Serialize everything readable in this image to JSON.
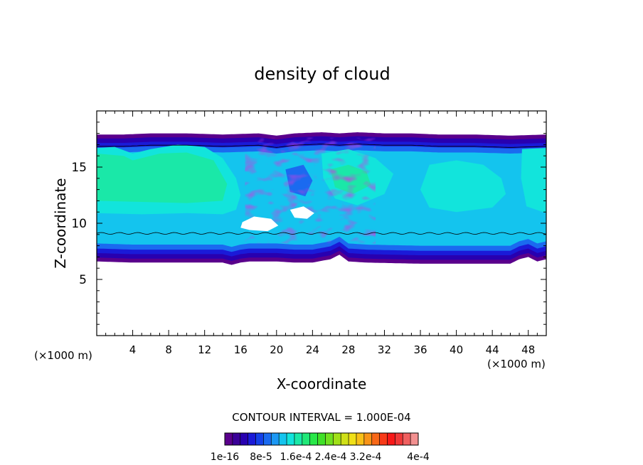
{
  "chart_data": {
    "type": "heatmap",
    "title": "density of cloud",
    "xlabel": "X-coordinate",
    "ylabel": "Z-coordinate",
    "x_unit": "(×1000 m)",
    "z_unit": "(×1000 m)",
    "xlim": [
      0,
      50
    ],
    "ylim": [
      0,
      20
    ],
    "x_ticks": [
      4,
      8,
      12,
      16,
      20,
      24,
      28,
      32,
      36,
      40,
      44,
      48
    ],
    "y_ticks": [
      5,
      10,
      15
    ],
    "cloud_bounds": {
      "top": [
        [
          0,
          17.9
        ],
        [
          3,
          17.9
        ],
        [
          6,
          18.0
        ],
        [
          10,
          18.0
        ],
        [
          14,
          17.9
        ],
        [
          18,
          18.0
        ],
        [
          20,
          17.8
        ],
        [
          22,
          18.0
        ],
        [
          25,
          18.1
        ],
        [
          27,
          18.0
        ],
        [
          29,
          18.1
        ],
        [
          32,
          18.0
        ],
        [
          35,
          18.0
        ],
        [
          38,
          17.9
        ],
        [
          42,
          17.9
        ],
        [
          46,
          17.8
        ],
        [
          50,
          17.9
        ]
      ],
      "bottom": [
        [
          0,
          6.6
        ],
        [
          4,
          6.5
        ],
        [
          10,
          6.5
        ],
        [
          14,
          6.5
        ],
        [
          15,
          6.3
        ],
        [
          16,
          6.5
        ],
        [
          17,
          6.6
        ],
        [
          20,
          6.6
        ],
        [
          22,
          6.5
        ],
        [
          24,
          6.5
        ],
        [
          26,
          6.8
        ],
        [
          27,
          7.2
        ],
        [
          28,
          6.6
        ],
        [
          30,
          6.5
        ],
        [
          36,
          6.4
        ],
        [
          42,
          6.4
        ],
        [
          46,
          6.4
        ],
        [
          47,
          6.8
        ],
        [
          48,
          7.0
        ],
        [
          49,
          6.6
        ],
        [
          50,
          6.8
        ]
      ]
    },
    "annotation": "CONTOUR INTERVAL = 1.000E-04",
    "colorbar": {
      "colors": [
        "#5a008c",
        "#3a0098",
        "#2800b0",
        "#1a1ad8",
        "#1440e8",
        "#1a6af0",
        "#1c98f4",
        "#14c4ee",
        "#12e4dc",
        "#1ae8a8",
        "#20e878",
        "#28e848",
        "#40e028",
        "#70e020",
        "#a0e018",
        "#d0e018",
        "#f0e018",
        "#f8c018",
        "#f89418",
        "#f86818",
        "#f83a18",
        "#f81818",
        "#f03838",
        "#f06060",
        "#f29090"
      ],
      "tick_labels": [
        "1e-16",
        "8e-5",
        "1.6e-4",
        "2.4e-4",
        "3.2e-4",
        "4e-4"
      ]
    }
  }
}
